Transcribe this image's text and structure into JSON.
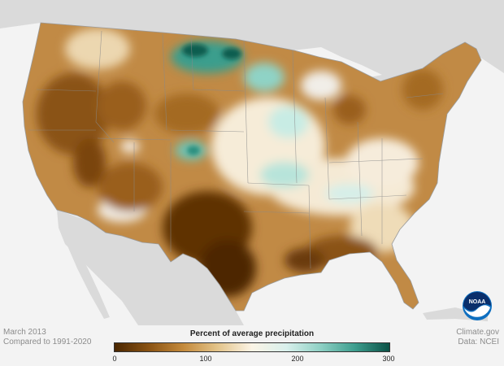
{
  "caption": {
    "month": "March 2013",
    "baseline": "Compared to 1991-2020"
  },
  "credit": {
    "site": "Climate.gov",
    "source": "Data: NCEI"
  },
  "legend": {
    "title": "Percent of average precipitation",
    "ticks": [
      "0",
      "100",
      "200",
      "300"
    ],
    "colors": [
      "#4a2600",
      "#8a5313",
      "#c48a3c",
      "#e3c48a",
      "#fbf4e6",
      "#d9f0ec",
      "#8ed0c4",
      "#3d9e8e",
      "#0b5146"
    ]
  },
  "logo": {
    "text": "NOAA",
    "icon": "noaa-logo-icon"
  },
  "map": {
    "dry_color": "#9a5c18",
    "very_dry_color": "#5e3105",
    "wet_color": "#7fcfc2",
    "very_wet_color": "#0d6e5e",
    "land_bg_color": "#dadada"
  }
}
